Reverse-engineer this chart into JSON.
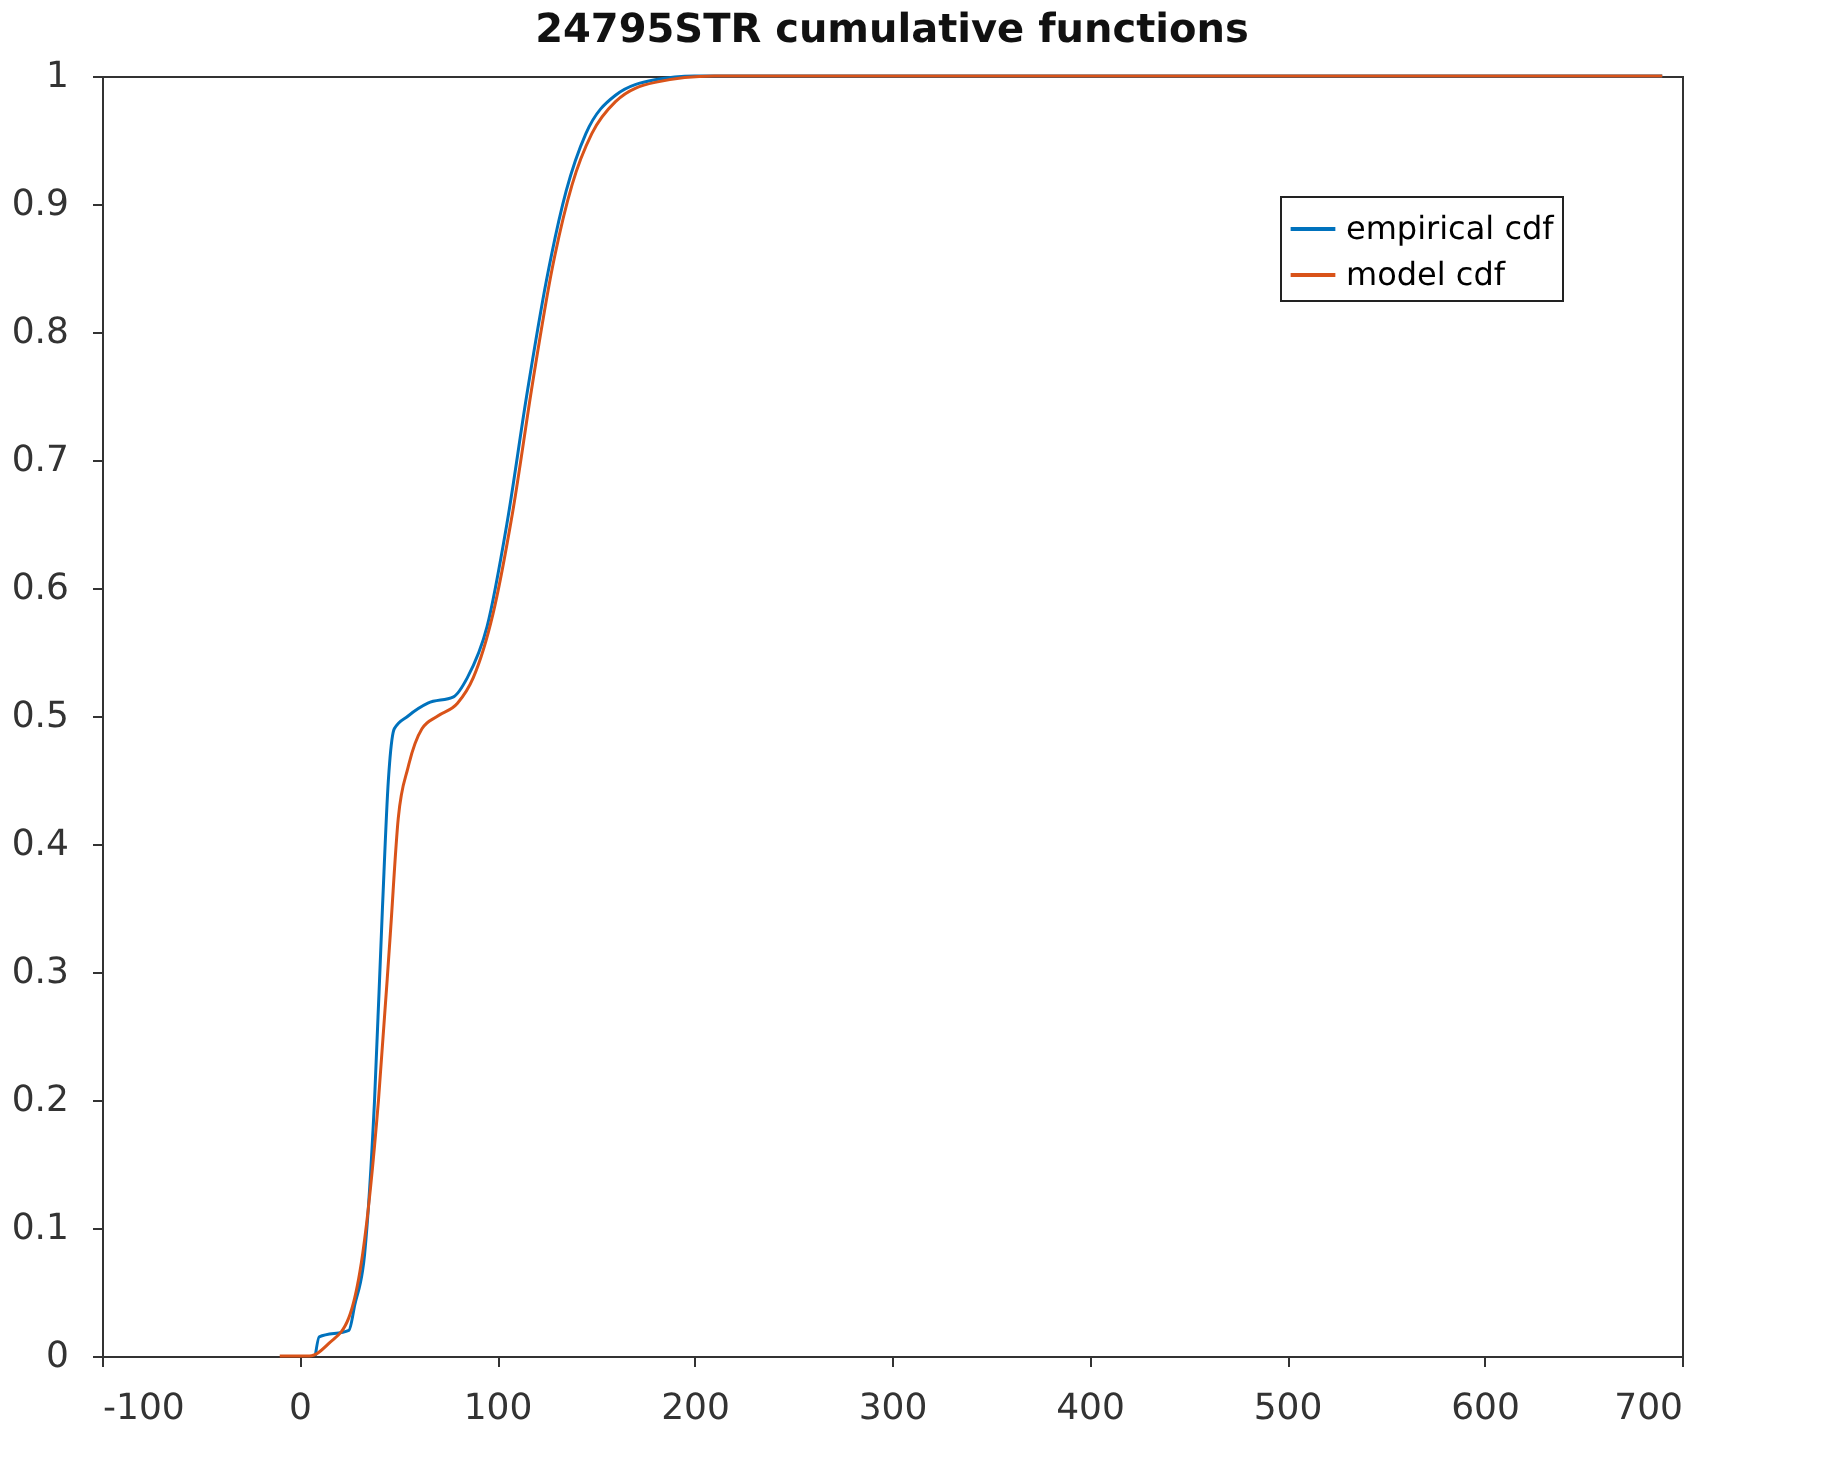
{
  "chart_data": {
    "type": "line",
    "title": "24795STR cumulative functions",
    "xlim": [
      -100,
      700
    ],
    "xticks": [
      -100,
      0,
      100,
      200,
      300,
      400,
      500,
      600,
      700
    ],
    "ylim": [
      0,
      1
    ],
    "yticks": [
      0,
      0.1,
      0.2,
      0.3,
      0.4,
      0.5,
      0.6,
      0.7,
      0.8,
      0.9,
      1
    ],
    "grid": false,
    "legend": "top right",
    "marker": "none",
    "line_style": "solid",
    "series": [
      {
        "name": "empirical cdf",
        "color": "#0072bd",
        "x": [
          8,
          10,
          25,
          28,
          33,
          38,
          42,
          45,
          48,
          55,
          65,
          78,
          85,
          95,
          105,
          115,
          125,
          135,
          145,
          160,
          180,
          200,
          690
        ],
        "values": [
          0,
          0.015,
          0.02,
          0.04,
          0.08,
          0.2,
          0.35,
          0.45,
          0.49,
          0.5,
          0.51,
          0.515,
          0.53,
          0.57,
          0.65,
          0.75,
          0.84,
          0.91,
          0.955,
          0.985,
          0.997,
          1,
          1
        ]
      },
      {
        "name": "model cdf",
        "color": "#d95319",
        "x": [
          -10,
          5,
          15,
          25,
          32,
          40,
          46,
          50,
          55,
          62,
          70,
          80,
          88,
          98,
          108,
          118,
          128,
          138,
          148,
          160,
          180,
          210,
          690
        ],
        "values": [
          0,
          0,
          0.01,
          0.03,
          0.08,
          0.2,
          0.33,
          0.42,
          0.46,
          0.49,
          0.5,
          0.51,
          0.53,
          0.58,
          0.66,
          0.76,
          0.85,
          0.915,
          0.955,
          0.98,
          0.995,
          1,
          1
        ]
      }
    ]
  }
}
